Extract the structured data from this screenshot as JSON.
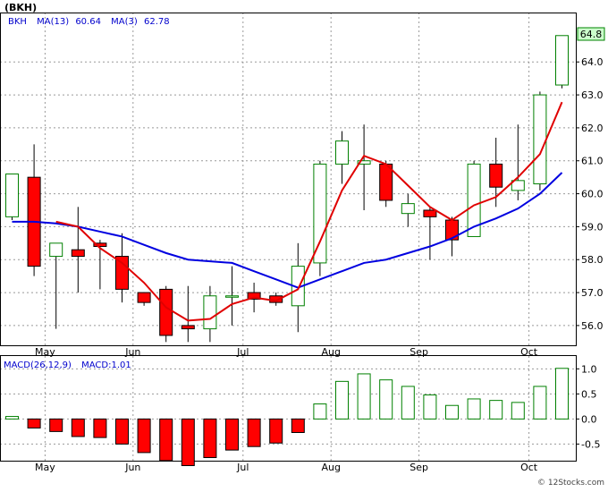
{
  "title": "(BKH)",
  "price_panel": {
    "legend": {
      "symbol": "BKH",
      "ma13_label": "MA(13)",
      "ma13_value": "60.64",
      "ma3_label": "MA(3)",
      "ma3_value": "62.78"
    },
    "last_price_label": "64.8"
  },
  "macd_panel": {
    "legend": {
      "label": "MACD(26,12,9)",
      "value_label": "MACD:1.01"
    }
  },
  "watermark": "© 12Stocks.com",
  "colors": {
    "up": "#008000",
    "down": "#ff0000",
    "ma13": "#0000e0",
    "ma3": "#e00000",
    "grid": "#999999",
    "label_box": "#ccffcc"
  },
  "chart_data": [
    {
      "type": "candlestick",
      "title": "(BKH)",
      "ylim": [
        55.4,
        65.5
      ],
      "y_ticks": [
        "56.0",
        "57.0",
        "58.0",
        "59.0",
        "60.0",
        "61.0",
        "62.0",
        "63.0",
        "64.0"
      ],
      "x_labels": [
        "May",
        "Jun",
        "Jul",
        "Aug",
        "Sep",
        "Oct"
      ],
      "x_label_positions": [
        1.5,
        5.5,
        10.5,
        14.5,
        18.5,
        23.5
      ],
      "candles": [
        {
          "o": 59.3,
          "h": 60.6,
          "l": 59.2,
          "c": 60.6
        },
        {
          "o": 60.5,
          "h": 61.5,
          "l": 57.5,
          "c": 57.8
        },
        {
          "o": 58.1,
          "h": 58.5,
          "l": 55.9,
          "c": 58.5
        },
        {
          "o": 58.3,
          "h": 59.6,
          "l": 57.0,
          "c": 58.1
        },
        {
          "o": 58.5,
          "h": 58.6,
          "l": 57.1,
          "c": 58.4
        },
        {
          "o": 58.1,
          "h": 58.8,
          "l": 56.7,
          "c": 57.1
        },
        {
          "o": 57.0,
          "h": 57.0,
          "l": 56.6,
          "c": 56.7
        },
        {
          "o": 57.1,
          "h": 57.2,
          "l": 55.5,
          "c": 55.7
        },
        {
          "o": 56.0,
          "h": 57.2,
          "l": 55.5,
          "c": 55.9
        },
        {
          "o": 55.9,
          "h": 57.2,
          "l": 55.5,
          "c": 56.9
        },
        {
          "o": 56.9,
          "h": 57.8,
          "l": 56.0,
          "c": 56.9
        },
        {
          "o": 57.0,
          "h": 57.3,
          "l": 56.4,
          "c": 56.8
        },
        {
          "o": 56.9,
          "h": 57.0,
          "l": 56.6,
          "c": 56.7
        },
        {
          "o": 56.6,
          "h": 58.5,
          "l": 55.8,
          "c": 57.8
        },
        {
          "o": 57.9,
          "h": 61.0,
          "l": 57.5,
          "c": 60.9
        },
        {
          "o": 60.9,
          "h": 61.9,
          "l": 60.3,
          "c": 61.6
        },
        {
          "o": 60.9,
          "h": 62.1,
          "l": 59.5,
          "c": 61.0
        },
        {
          "o": 60.9,
          "h": 61.0,
          "l": 59.6,
          "c": 59.8
        },
        {
          "o": 59.4,
          "h": 60.0,
          "l": 59.0,
          "c": 59.7
        },
        {
          "o": 59.5,
          "h": 59.6,
          "l": 58.0,
          "c": 59.3
        },
        {
          "o": 59.2,
          "h": 59.3,
          "l": 58.1,
          "c": 58.6
        },
        {
          "o": 58.7,
          "h": 61.0,
          "l": 58.7,
          "c": 60.9
        },
        {
          "o": 60.9,
          "h": 61.7,
          "l": 59.6,
          "c": 60.2
        },
        {
          "o": 60.1,
          "h": 62.1,
          "l": 59.8,
          "c": 60.4
        },
        {
          "o": 60.3,
          "h": 63.1,
          "l": 60.1,
          "c": 63.0
        },
        {
          "o": 63.3,
          "h": 64.8,
          "l": 63.2,
          "c": 64.8
        }
      ],
      "series": [
        {
          "name": "MA(13)",
          "values": [
            59.15,
            59.15,
            59.1,
            59.0,
            58.85,
            58.7,
            58.45,
            58.2,
            58.0,
            57.95,
            57.9,
            57.65,
            57.4,
            57.15,
            57.4,
            57.65,
            57.9,
            58.0,
            58.2,
            58.4,
            58.65,
            59.0,
            59.25,
            59.55,
            60.0,
            60.64
          ]
        },
        {
          "name": "MA(3)",
          "values": [
            null,
            null,
            59.15,
            59.0,
            58.35,
            57.9,
            57.3,
            56.55,
            56.15,
            56.2,
            56.65,
            56.85,
            56.75,
            57.1,
            58.55,
            60.1,
            61.15,
            60.9,
            60.25,
            59.6,
            59.2,
            59.65,
            59.9,
            60.5,
            61.2,
            62.78
          ]
        }
      ]
    },
    {
      "type": "bar",
      "title": "MACD(26,12,9)",
      "ylim": [
        -0.85,
        1.22
      ],
      "y_ticks": [
        "1.0",
        "0.5",
        "0.0",
        "-0.5"
      ],
      "x_labels": [
        "May",
        "Jun",
        "Jul",
        "Aug",
        "Sep",
        "Oct"
      ],
      "x_label_positions": [
        1.5,
        5.5,
        10.5,
        14.5,
        18.5,
        23.5
      ],
      "series": [
        {
          "name": "MACD",
          "values": [
            0.05,
            -0.18,
            -0.25,
            -0.35,
            -0.37,
            -0.5,
            -0.67,
            -0.83,
            -0.93,
            -0.77,
            -0.62,
            -0.55,
            -0.48,
            -0.27,
            0.3,
            0.75,
            0.9,
            0.78,
            0.65,
            0.48,
            0.27,
            0.4,
            0.37,
            0.33,
            0.65,
            1.01
          ]
        }
      ]
    }
  ]
}
